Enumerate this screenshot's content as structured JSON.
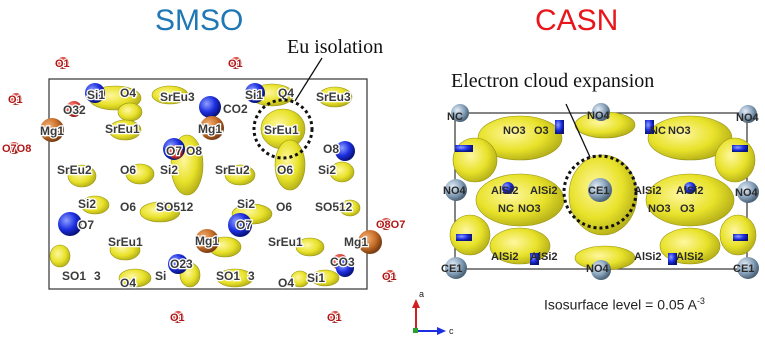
{
  "titles": {
    "left": "SMSO",
    "right": "CASN"
  },
  "annotations": {
    "eu_isolation": "Eu isolation",
    "electron_cloud": "Electron cloud expansion"
  },
  "isosurface": {
    "text": "Isosurface level = 0.05 A",
    "exponent": "-3"
  },
  "axes": {
    "a": "a",
    "c": "c"
  },
  "colors": {
    "smso_title": "#1f77b4",
    "casn_title": "#e8161b",
    "isosurface": "#e8e22a",
    "oxygen": "#d9423a",
    "nitrogen": "#1c2ee0",
    "magnesium": "#c9702a",
    "calcium": "#8aa4bd"
  },
  "smso": {
    "labels": {
      "o1_a": "O1",
      "o1_b": "O1",
      "o1_c": "O1",
      "o7o8": "O7O8",
      "o1_d": "O1",
      "o1_e": "O1",
      "o1_f": "O1",
      "o8o7": "O8O7",
      "si1_a": "Si1",
      "o32": "O32",
      "o4_a": "O4",
      "sreu3_a": "SrEu3",
      "si1_b": "Si1",
      "q4": "Q4",
      "sreu3_b": "SrEu3",
      "mg1_a": "Mg1",
      "sreu1_a": "SrEu1",
      "mg1_b": "Mg1",
      "sreu1_b": "SrEu1",
      "co2": "CO2",
      "o8_a": "O8",
      "o7_a": "O7",
      "sreu2_a": "SrEu2",
      "o6_a": "O6",
      "si2_a": "Si2",
      "sreu2_b": "SrEu2",
      "o6_b": "O6",
      "si2_b": "Si2",
      "si2_c": "Si2",
      "o6_c": "O6",
      "so512_a": "SO512",
      "si2_d": "Si2",
      "o6_d": "O6",
      "so512_b": "SO512",
      "o7_b": "O7",
      "c_o7": "O7",
      "sreu1_c": "SrEu1",
      "mg1_c": "Mg1",
      "sreu1_d": "SrEu1",
      "mg1_d": "Mg1",
      "so13_a": "SO1",
      "three_a": "3",
      "o4_b": "O4",
      "si_a": "Si",
      "o23": "O23",
      "so13_b": "SO1",
      "three_b": "3",
      "o4_c": "O4",
      "si1_c": "Si1",
      "co3": "CO3"
    }
  },
  "casn": {
    "labels": {
      "nc_a": "NC",
      "no4_a": "NO4",
      "no4_b": "NO4",
      "no3_a": "NO3",
      "o3_a": "O3",
      "nc_b": "NC",
      "no3_b": "NO3",
      "no4_c": "NO4",
      "alsi2_a": "AlSi2",
      "alsi2_b": "AlSi2",
      "ce1_center": "CE1",
      "alsi2_c": "AlSi2",
      "alsi2_d": "AlSi2",
      "no4_d": "NO4",
      "nc_c": "NC",
      "no3_c": "NO3",
      "no3_d": "NO3",
      "o3_b": "O3",
      "ce1_a": "CE1",
      "alsi2_e": "AlSi2",
      "alsi2_f": "AlSi2",
      "no4_e": "NO4",
      "alsi2_g": "AlSi2",
      "alsi2_h": "AlSi2",
      "ce1_b": "CE1"
    }
  }
}
